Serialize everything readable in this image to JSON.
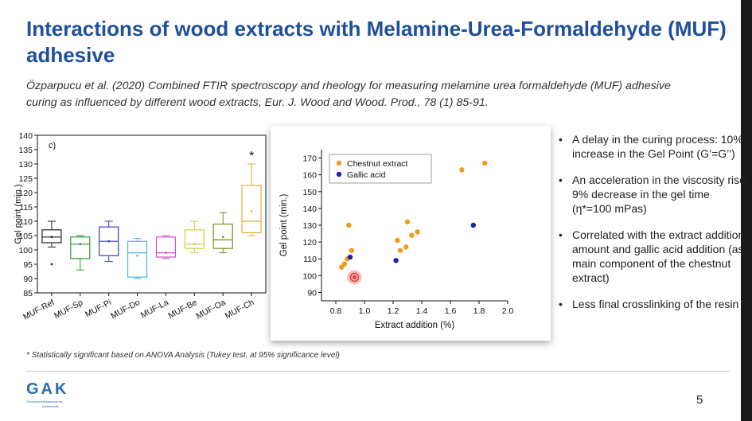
{
  "slide": {
    "title": "Interactions of wood extracts with Melamine-Urea-Formaldehyde (MUF) adhesive",
    "citation": "Özparpucu et al. (2020) Combined FTIR spectroscopy and rheology for measuring melamine urea formaldehyde (MUF) adhesive curing as influenced by different wood extracts, Eur. J. Wood and Wood. Prod., 78 (1) 85-91.",
    "bullets": [
      "A delay in the curing process: 10% increase in the Gel Point (G’=G’’)",
      "An acceleration in the viscosity rise: 9% decrease in the gel time  (η*=100 mPas)",
      "Correlated with the extract addition amount and gallic acid addition (as main component of the chestnut extract)",
      "Less final crosslinking of the resin"
    ],
    "footnote": "* Statistically significant based on ANOVA Analysis (Tukey test, at 95% significance level)",
    "page_number": "5",
    "logo": {
      "mark": "GAK",
      "line1": "Gemeinschaftsausschuss",
      "line2": "Klebtechnik"
    }
  },
  "chart_data": [
    {
      "type": "box",
      "panel_label": "c)",
      "ylabel": "Gel point (min.)",
      "ylim": [
        85,
        140
      ],
      "yticks": [
        85,
        90,
        95,
        100,
        105,
        110,
        115,
        120,
        125,
        130,
        135,
        140
      ],
      "significance_marker": {
        "category": "MUF-Ch",
        "label": "*"
      },
      "boxes": [
        {
          "category": "MUF-Ref",
          "color": "#222222",
          "whisker_low": 101,
          "q1": 102.5,
          "median": 104.5,
          "mean": 104.5,
          "q3": 107,
          "whisker_high": 110,
          "outliers": [
            95
          ]
        },
        {
          "category": "MUF-Sp",
          "color": "#2a9d2a",
          "whisker_low": 93,
          "q1": 97,
          "median": 102,
          "mean": 102,
          "q3": 104.5,
          "whisker_high": 105,
          "outliers": []
        },
        {
          "category": "MUF-Pi",
          "color": "#3c3cc9",
          "whisker_low": 96,
          "q1": 98,
          "median": 103,
          "mean": 103,
          "q3": 108,
          "whisker_high": 110,
          "outliers": []
        },
        {
          "category": "MUF-Do",
          "color": "#4bb8d6",
          "whisker_low": 90,
          "q1": 90.5,
          "median": 99,
          "mean": 98,
          "q3": 103,
          "whisker_high": 104,
          "outliers": []
        },
        {
          "category": "MUF-La",
          "color": "#d14fc9",
          "whisker_low": 97,
          "q1": 97.5,
          "median": 99,
          "mean": 99,
          "q3": 104.5,
          "whisker_high": 105,
          "outliers": []
        },
        {
          "category": "MUF-Be",
          "color": "#d4cc3a",
          "whisker_low": 99,
          "q1": 100.5,
          "median": 102,
          "mean": 102,
          "q3": 107,
          "whisker_high": 110,
          "outliers": []
        },
        {
          "category": "MUF-Oa",
          "color": "#808a1e",
          "whisker_low": 99,
          "q1": 100.5,
          "median": 103.5,
          "mean": 104.5,
          "q3": 109,
          "whisker_high": 113,
          "outliers": []
        },
        {
          "category": "MUF-Ch",
          "color": "#e8a93b",
          "whisker_low": 105,
          "q1": 106,
          "median": 110,
          "mean": 113.5,
          "q3": 122.5,
          "whisker_high": 130,
          "outliers": []
        }
      ]
    },
    {
      "type": "scatter",
      "xlabel": "Extract addition (%)",
      "ylabel": "Gel point (min.)",
      "xlim": [
        0.7,
        2.0
      ],
      "ylim": [
        85,
        175
      ],
      "xticks": [
        0.8,
        1.0,
        1.2,
        1.4,
        1.6,
        1.8,
        2.0
      ],
      "yticks": [
        90,
        100,
        110,
        120,
        130,
        140,
        150,
        160,
        170
      ],
      "legend_position": "top-left",
      "series": [
        {
          "name": "Chestnut extract",
          "color": "#f09a21",
          "x": [
            0.84,
            0.86,
            0.88,
            0.89,
            0.91,
            1.23,
            1.25,
            1.29,
            1.3,
            1.33,
            1.37,
            1.68,
            1.84
          ],
          "y": [
            105,
            107,
            110,
            130,
            115,
            121,
            115,
            117,
            132,
            124,
            126,
            163,
            167
          ]
        },
        {
          "name": "Gallic acid",
          "color": "#1f1fb0",
          "x": [
            0.9,
            1.22,
            1.76
          ],
          "y": [
            111,
            109,
            130
          ]
        }
      ],
      "highlight_point": {
        "x": 0.93,
        "y": 99
      }
    }
  ]
}
